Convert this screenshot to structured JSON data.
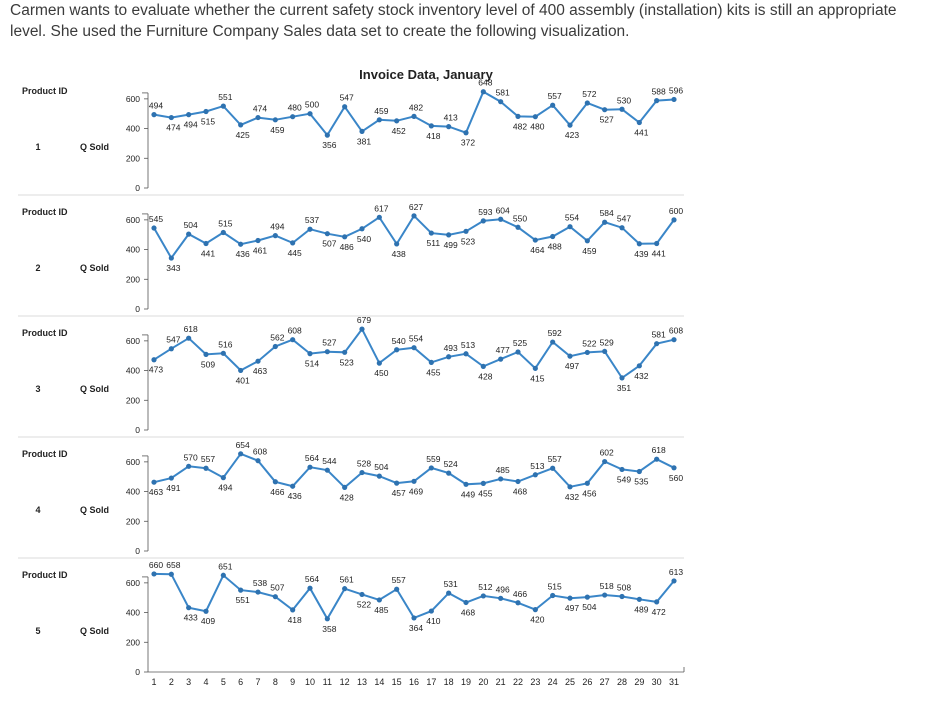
{
  "intro": "Carmen wants to evaluate whether the current safety stock inventory level of 400 assembly (installation) kits is still an appropriate level. She used the Furniture Company Sales data set to create the following visualization.",
  "chart_data": {
    "type": "line",
    "title": "Invoice Data, January",
    "row_header": "Product ID",
    "ylabel": "Q Sold",
    "ylim": [
      0,
      700
    ],
    "yticks": [
      "0",
      "200",
      "400",
      "600"
    ],
    "grid": false,
    "x": [
      "1",
      "2",
      "3",
      "4",
      "5",
      "6",
      "7",
      "8",
      "9",
      "10",
      "11",
      "12",
      "13",
      "14",
      "15",
      "16",
      "17",
      "18",
      "19",
      "20",
      "21",
      "22",
      "23",
      "24",
      "25",
      "26",
      "27",
      "28",
      "29",
      "30",
      "31"
    ],
    "series": [
      {
        "name": "1",
        "values": [
          494,
          474,
          494,
          515,
          551,
          425,
          474,
          459,
          480,
          500,
          356,
          547,
          381,
          459,
          452,
          482,
          418,
          413,
          372,
          648,
          581,
          482,
          480,
          557,
          423,
          572,
          527,
          530,
          441,
          588,
          596
        ]
      },
      {
        "name": "2",
        "values": [
          545,
          343,
          504,
          441,
          515,
          436,
          461,
          494,
          445,
          537,
          507,
          486,
          540,
          617,
          438,
          627,
          511,
          499,
          523,
          593,
          604,
          550,
          464,
          488,
          554,
          459,
          584,
          547,
          439,
          441,
          600
        ]
      },
      {
        "name": "3",
        "values": [
          473,
          547,
          618,
          509,
          516,
          401,
          463,
          562,
          608,
          514,
          527,
          523,
          679,
          450,
          540,
          554,
          455,
          493,
          513,
          428,
          477,
          525,
          415,
          592,
          497,
          522,
          529,
          351,
          432,
          581,
          608
        ]
      },
      {
        "name": "4",
        "values": [
          463,
          491,
          570,
          557,
          494,
          654,
          608,
          466,
          436,
          564,
          544,
          428,
          528,
          504,
          457,
          469,
          559,
          524,
          449,
          455,
          485,
          468,
          513,
          557,
          432,
          456,
          602,
          549,
          535,
          618,
          560
        ]
      },
      {
        "name": "5",
        "values": [
          660,
          658,
          433,
          409,
          651,
          551,
          538,
          507,
          418,
          564,
          358,
          561,
          522,
          485,
          557,
          364,
          410,
          531,
          468,
          512,
          496,
          466,
          420,
          515,
          497,
          504,
          518,
          508,
          489,
          472,
          613
        ]
      }
    ]
  }
}
